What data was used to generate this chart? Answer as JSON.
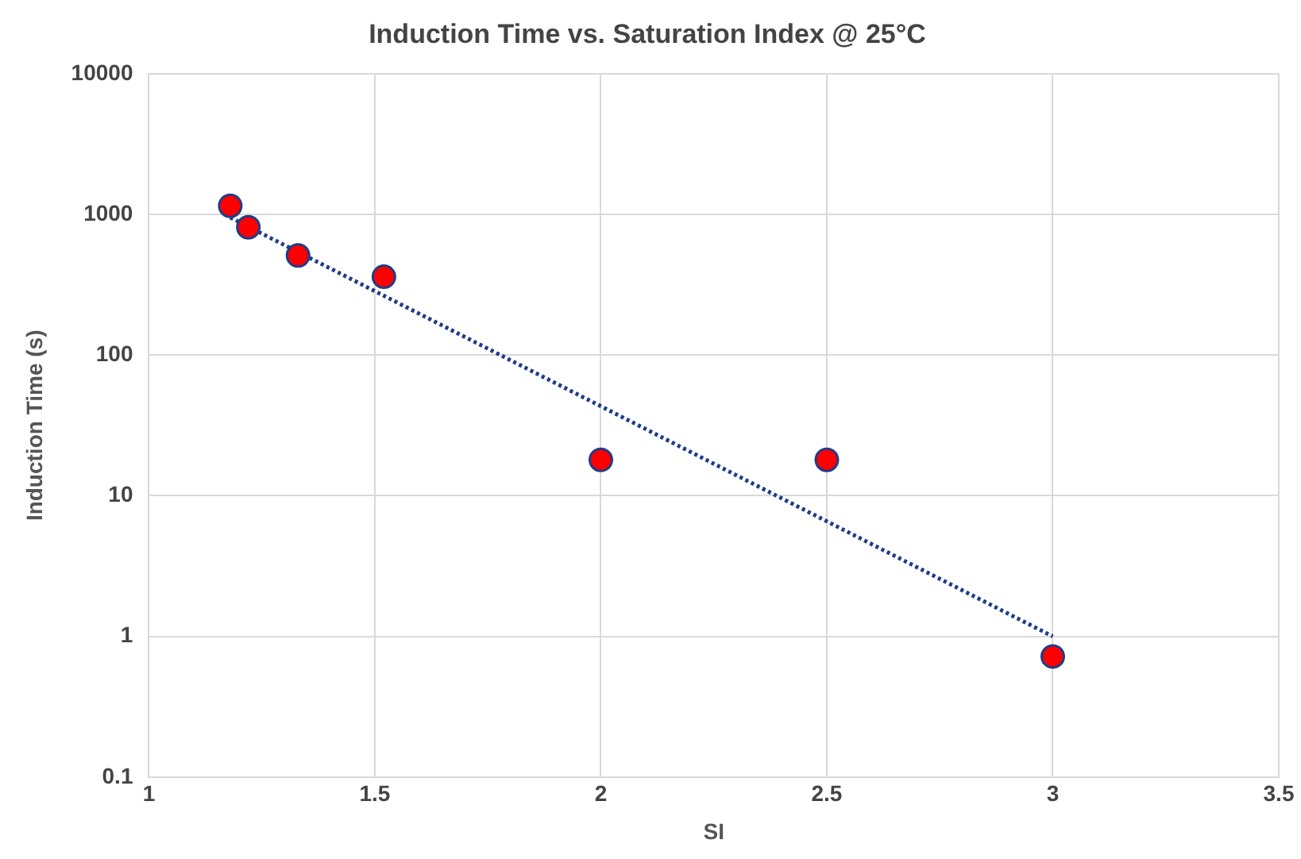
{
  "chart_data": {
    "type": "scatter",
    "title": "Induction Time vs. Saturation Index @ 25°C",
    "xlabel": "SI",
    "ylabel": "Induction Time (s)",
    "series": [
      {
        "color": "#ff0000",
        "x": [
          1.18,
          1.22,
          1.33,
          1.52,
          2,
          2.5,
          3
        ],
        "values": [
          1150,
          810,
          510,
          360,
          18,
          18,
          0.72
        ]
      },
      {
        "type": "line",
        "color": "#1f3c88",
        "line_style": "dotted",
        "marker": "none",
        "x": [
          1.18,
          3
        ],
        "values": [
          950,
          1
        ]
      }
    ],
    "marker": "circle",
    "log": "y",
    "grid": true,
    "legend": false,
    "xlim": [
      1,
      3.5
    ],
    "xticks": [
      1,
      1.5,
      2,
      2.5,
      3,
      3.5
    ],
    "ylim": [
      0.1,
      10000
    ],
    "yticks": [
      0.1,
      1,
      10,
      100,
      1000,
      10000
    ]
  }
}
